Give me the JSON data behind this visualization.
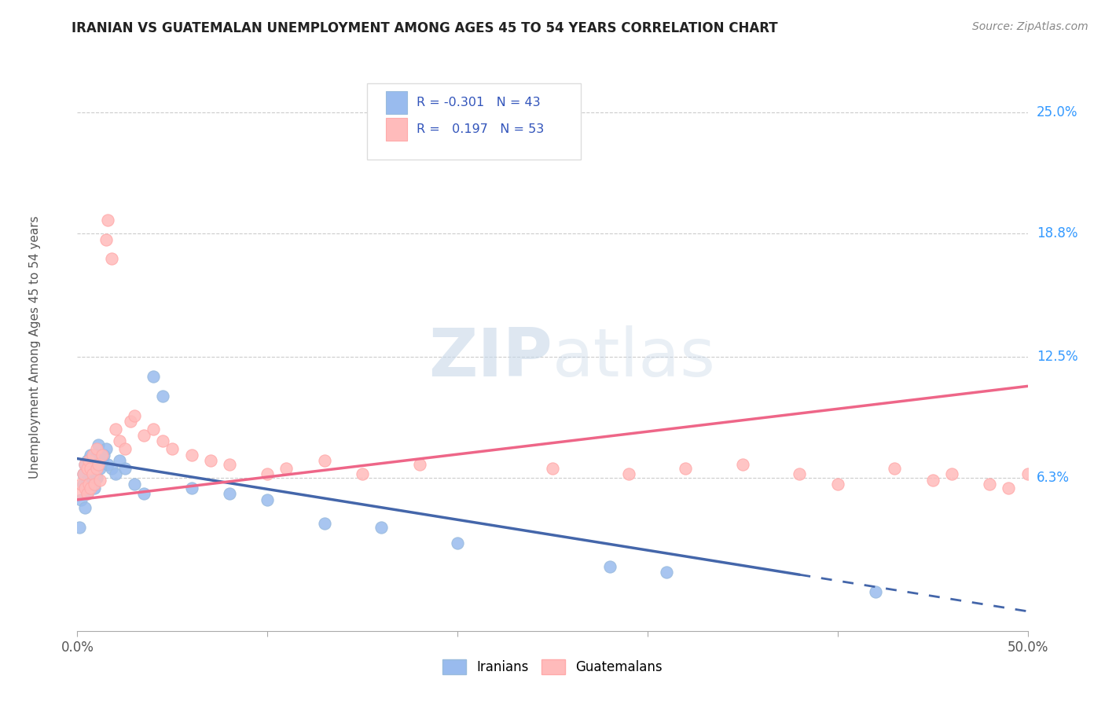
{
  "title": "IRANIAN VS GUATEMALAN UNEMPLOYMENT AMONG AGES 45 TO 54 YEARS CORRELATION CHART",
  "source": "Source: ZipAtlas.com",
  "ylabel_labels": [
    "6.3%",
    "12.5%",
    "18.8%",
    "25.0%"
  ],
  "ylabel_values": [
    0.063,
    0.125,
    0.188,
    0.25
  ],
  "xlim": [
    0.0,
    0.5
  ],
  "ylim": [
    -0.015,
    0.275
  ],
  "legend_label1": "Iranians",
  "legend_label2": "Guatemalans",
  "blue_color": "#99BBDD",
  "pink_color": "#FFAAAA",
  "blue_line_color": "#4466AA",
  "pink_line_color": "#EE6688",
  "blue_scatter_color": "#99BBEE",
  "pink_scatter_color": "#FFBBBB",
  "iranians_x": [
    0.001,
    0.002,
    0.003,
    0.003,
    0.004,
    0.004,
    0.005,
    0.005,
    0.005,
    0.006,
    0.006,
    0.007,
    0.007,
    0.008,
    0.008,
    0.009,
    0.009,
    0.01,
    0.01,
    0.011,
    0.011,
    0.012,
    0.013,
    0.014,
    0.015,
    0.016,
    0.018,
    0.02,
    0.022,
    0.025,
    0.03,
    0.035,
    0.04,
    0.045,
    0.06,
    0.08,
    0.1,
    0.13,
    0.16,
    0.2,
    0.28,
    0.31,
    0.42
  ],
  "iranians_y": [
    0.038,
    0.052,
    0.06,
    0.065,
    0.048,
    0.07,
    0.055,
    0.062,
    0.072,
    0.058,
    0.068,
    0.06,
    0.075,
    0.065,
    0.072,
    0.058,
    0.068,
    0.063,
    0.075,
    0.07,
    0.08,
    0.068,
    0.072,
    0.075,
    0.078,
    0.07,
    0.068,
    0.065,
    0.072,
    0.068,
    0.06,
    0.055,
    0.115,
    0.105,
    0.058,
    0.055,
    0.052,
    0.04,
    0.038,
    0.03,
    0.018,
    0.015,
    0.005
  ],
  "guatemalans_x": [
    0.001,
    0.002,
    0.003,
    0.004,
    0.004,
    0.005,
    0.005,
    0.006,
    0.006,
    0.007,
    0.007,
    0.008,
    0.008,
    0.009,
    0.01,
    0.01,
    0.011,
    0.012,
    0.013,
    0.015,
    0.016,
    0.018,
    0.02,
    0.022,
    0.025,
    0.028,
    0.03,
    0.035,
    0.04,
    0.045,
    0.05,
    0.06,
    0.07,
    0.08,
    0.1,
    0.11,
    0.13,
    0.15,
    0.18,
    0.22,
    0.25,
    0.29,
    0.32,
    0.35,
    0.38,
    0.4,
    0.43,
    0.45,
    0.46,
    0.48,
    0.49,
    0.5,
    0.505
  ],
  "guatemalans_y": [
    0.055,
    0.06,
    0.065,
    0.058,
    0.07,
    0.055,
    0.068,
    0.06,
    0.072,
    0.058,
    0.068,
    0.065,
    0.075,
    0.06,
    0.068,
    0.078,
    0.07,
    0.062,
    0.075,
    0.185,
    0.195,
    0.175,
    0.088,
    0.082,
    0.078,
    0.092,
    0.095,
    0.085,
    0.088,
    0.082,
    0.078,
    0.075,
    0.072,
    0.07,
    0.065,
    0.068,
    0.072,
    0.065,
    0.07,
    0.235,
    0.068,
    0.065,
    0.068,
    0.07,
    0.065,
    0.06,
    0.068,
    0.062,
    0.065,
    0.06,
    0.058,
    0.065,
    0.062
  ],
  "iran_trend_x0": 0.0,
  "iran_trend_x1": 0.5,
  "iran_trend_y0": 0.073,
  "iran_trend_y1": -0.005,
  "guat_trend_x0": 0.0,
  "guat_trend_x1": 0.5,
  "guat_trend_y0": 0.052,
  "guat_trend_y1": 0.11
}
